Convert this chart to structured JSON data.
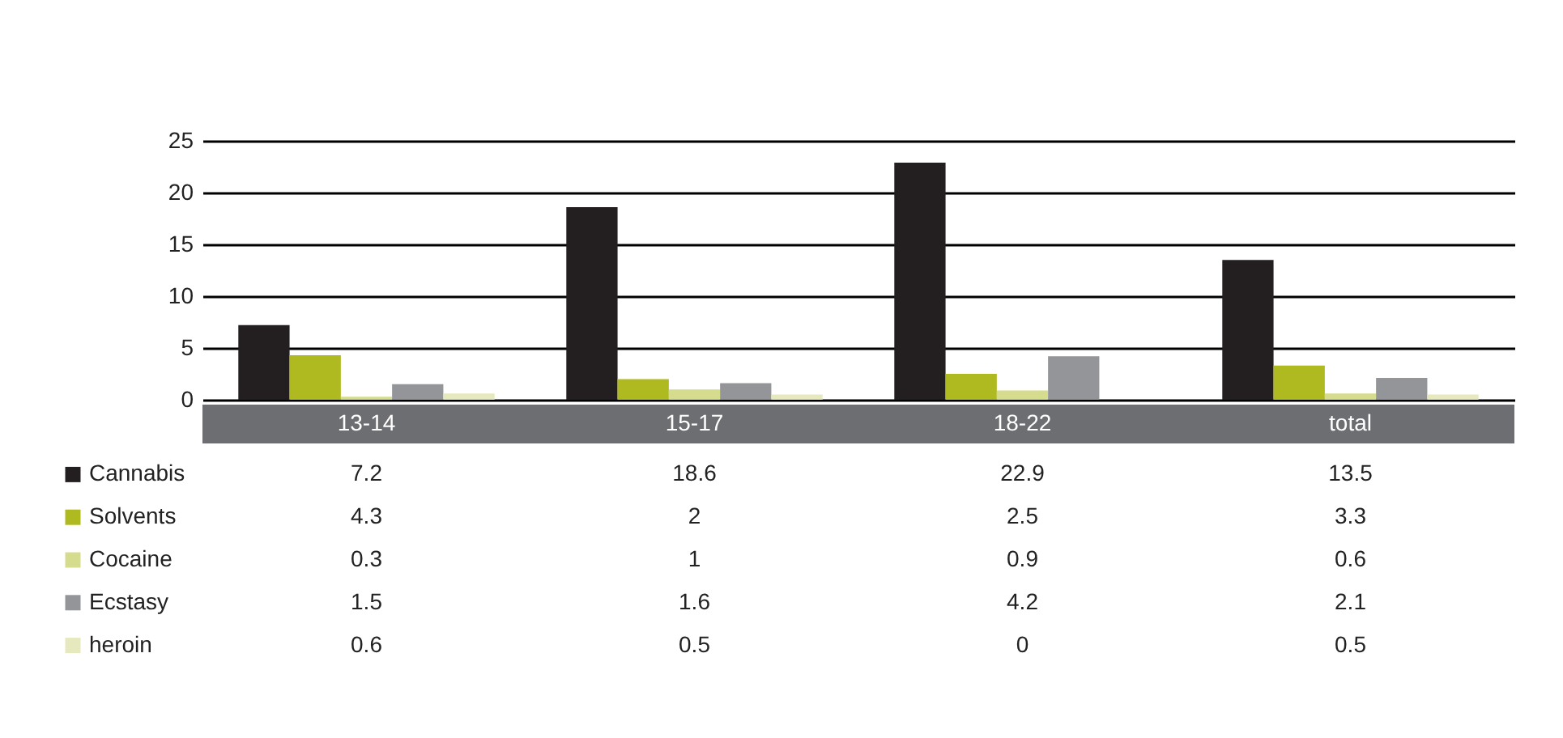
{
  "chart_data": {
    "type": "bar",
    "categories": [
      "13-14",
      "15-17",
      "18-22",
      "total"
    ],
    "series": [
      {
        "name": "Cannabis",
        "color": "#231f20",
        "values": [
          7.2,
          18.6,
          22.9,
          13.5
        ]
      },
      {
        "name": "Solvents",
        "color": "#afb920",
        "values": [
          4.3,
          2,
          2.5,
          3.3
        ]
      },
      {
        "name": "Cocaine",
        "color": "#d6dc8e",
        "values": [
          0.3,
          1,
          0.9,
          0.6
        ]
      },
      {
        "name": "Ecstasy",
        "color": "#939598",
        "values": [
          1.5,
          1.6,
          4.2,
          2.1
        ]
      },
      {
        "name": "heroin",
        "color": "#e6e9bd",
        "values": [
          0.6,
          0.5,
          0,
          0.5
        ]
      }
    ],
    "ylim": [
      0,
      25
    ],
    "yticks": [
      0,
      5,
      10,
      15,
      20,
      25
    ],
    "grid": "y",
    "legend": "bottom left",
    "data_labels": true
  }
}
